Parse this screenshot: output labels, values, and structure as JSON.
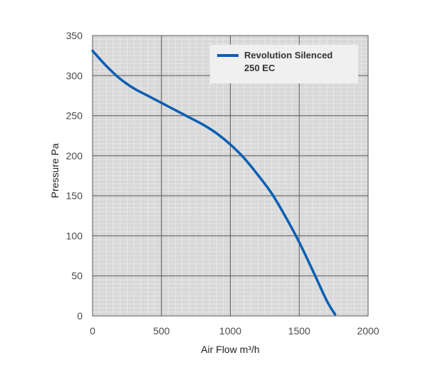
{
  "chart_data": {
    "type": "line",
    "xlabel": "Air Flow m³/h",
    "ylabel": "Pressure Pa",
    "xlim": [
      0,
      2000
    ],
    "ylim": [
      0,
      350
    ],
    "x_ticks": [
      "0",
      "500",
      "1000",
      "1500",
      "2000"
    ],
    "y_ticks": [
      "0",
      "50",
      "100",
      "150",
      "200",
      "250",
      "300",
      "350"
    ],
    "grid": true,
    "minor_grid": true,
    "legend_position": "top-right",
    "series": [
      {
        "name_line1": "Revolution Silenced",
        "name_line2": "250 EC",
        "color": "#0a5fb4",
        "points": [
          [
            0,
            331
          ],
          [
            100,
            312
          ],
          [
            200,
            296
          ],
          [
            300,
            284
          ],
          [
            400,
            275
          ],
          [
            500,
            266
          ],
          [
            600,
            257
          ],
          [
            700,
            248
          ],
          [
            800,
            239
          ],
          [
            900,
            228
          ],
          [
            1000,
            214
          ],
          [
            1100,
            197
          ],
          [
            1200,
            176
          ],
          [
            1300,
            153
          ],
          [
            1400,
            124
          ],
          [
            1500,
            92
          ],
          [
            1600,
            56
          ],
          [
            1700,
            19
          ],
          [
            1760,
            2
          ]
        ]
      }
    ]
  },
  "colors": {
    "plot_background": "#d8d8d8",
    "major_grid": "#5a5a5a",
    "minor_grid": "#ffffff",
    "legend_background": "#f0f0f0"
  }
}
